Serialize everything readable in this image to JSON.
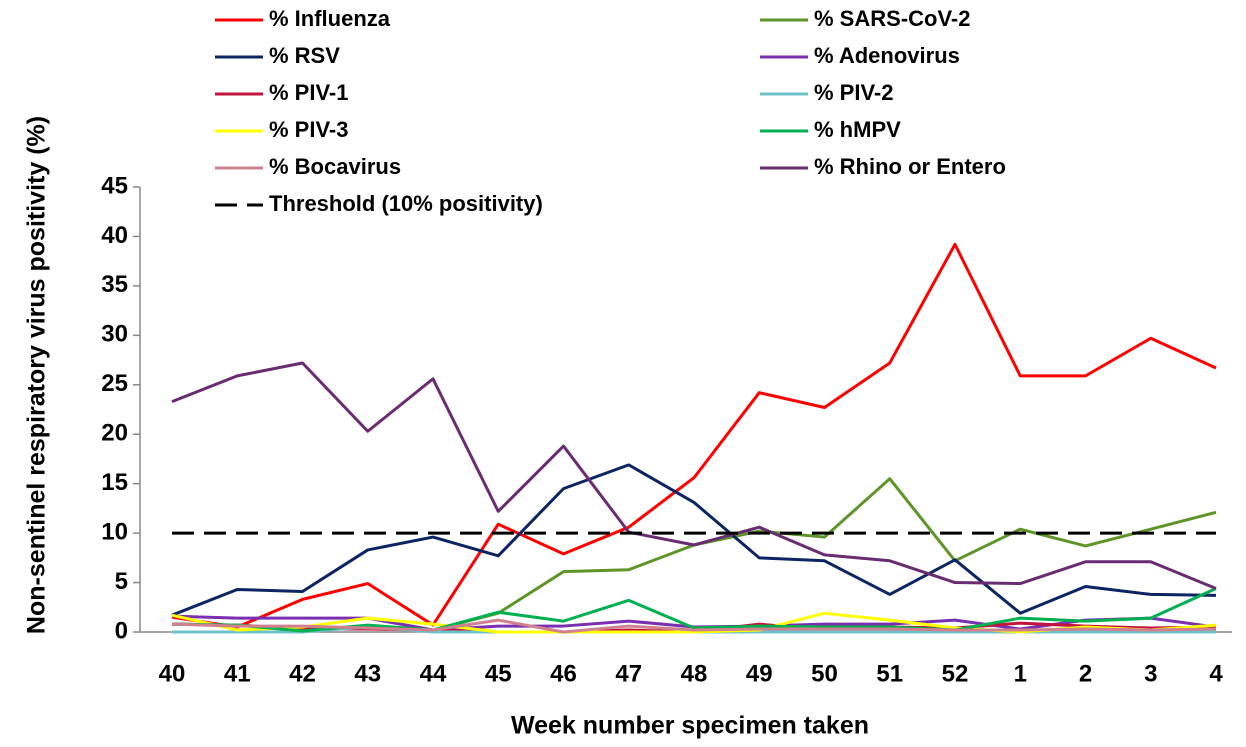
{
  "chart_data": {
    "type": "line",
    "x_label": "Week number specimen taken",
    "y_label": "Non-sentinel respiratory virus positivity (%)",
    "categories": [
      "40",
      "41",
      "42",
      "43",
      "44",
      "45",
      "46",
      "47",
      "48",
      "49",
      "50",
      "51",
      "52",
      "1",
      "2",
      "3",
      "4"
    ],
    "ylim": [
      0,
      45
    ],
    "yticks": [
      0,
      5,
      10,
      15,
      20,
      25,
      30,
      35,
      40,
      45
    ],
    "legend": "top",
    "series": [
      {
        "name": "% Influenza",
        "color": "#ff0000",
        "values": [
          1.5,
          0.5,
          3.3,
          4.9,
          0.7,
          10.9,
          7.9,
          10.6,
          15.6,
          24.2,
          22.7,
          27.2,
          39.2,
          25.9,
          25.9,
          29.7,
          26.7
        ]
      },
      {
        "name": "% SARS-CoV-2",
        "color": "#5e9428",
        "values": [
          0.8,
          0.7,
          0.3,
          0.5,
          0.2,
          1.9,
          6.1,
          6.3,
          8.8,
          10.2,
          9.6,
          15.5,
          7.2,
          10.4,
          8.7,
          10.4,
          12.1
        ]
      },
      {
        "name": "% RSV",
        "color": "#0c2461",
        "values": [
          1.7,
          4.3,
          4.1,
          8.3,
          9.6,
          7.7,
          14.5,
          16.9,
          13.1,
          7.5,
          7.2,
          3.8,
          7.3,
          1.9,
          4.6,
          3.8,
          3.7
        ]
      },
      {
        "name": "% Adenovirus",
        "color": "#7a2fb0",
        "values": [
          1.6,
          1.4,
          1.4,
          1.4,
          0.2,
          0.6,
          0.6,
          1.1,
          0.5,
          0.6,
          0.8,
          0.8,
          1.2,
          0.3,
          1.2,
          1.4,
          0.5
        ]
      },
      {
        "name": "% PIV-1",
        "color": "#c0143c",
        "values": [
          0.8,
          0.7,
          0.3,
          0.3,
          0.2,
          0,
          0,
          0.2,
          0,
          0.8,
          0.2,
          0.5,
          0.4,
          0.9,
          0.6,
          0.4,
          0.5
        ]
      },
      {
        "name": "% PIV-2",
        "color": "#6ec1c8",
        "values": [
          0,
          0,
          0,
          0.5,
          0,
          0,
          0,
          0,
          0,
          0,
          0,
          0,
          0,
          0,
          0,
          0,
          0
        ]
      },
      {
        "name": "% PIV-3",
        "color": "#ffff00",
        "values": [
          1.7,
          0.2,
          0.5,
          1.4,
          0.8,
          0,
          0,
          0,
          0,
          0.2,
          1.9,
          1.2,
          0.4,
          0,
          0.5,
          0.2,
          0.7
        ]
      },
      {
        "name": "% hMPV",
        "color": "#00b050",
        "values": [
          0.8,
          0.7,
          0.1,
          0.7,
          0.2,
          2.0,
          1.1,
          3.2,
          0.4,
          0.6,
          0.5,
          0.5,
          0.2,
          1.4,
          1.1,
          1.4,
          4.4
        ]
      },
      {
        "name": "% Bocavirus",
        "color": "#d0808f",
        "values": [
          0.8,
          0.6,
          0.6,
          0.4,
          0.2,
          1.2,
          0,
          0.6,
          0.2,
          0.3,
          0.3,
          0.3,
          0.2,
          0.2,
          0.3,
          0.2,
          0.3
        ]
      },
      {
        "name": "% Rhino or Entero",
        "color": "#6a2c70",
        "values": [
          23.3,
          25.9,
          27.2,
          20.3,
          25.6,
          12.2,
          18.8,
          10.1,
          8.8,
          10.6,
          7.8,
          7.2,
          5.0,
          4.9,
          7.1,
          7.1,
          4.4
        ]
      },
      {
        "name": "Threshold (10% positivity)",
        "color": "#000000",
        "dashed": true,
        "values": [
          10,
          10,
          10,
          10,
          10,
          10,
          10,
          10,
          10,
          10,
          10,
          10,
          10,
          10,
          10,
          10,
          10
        ]
      }
    ]
  }
}
